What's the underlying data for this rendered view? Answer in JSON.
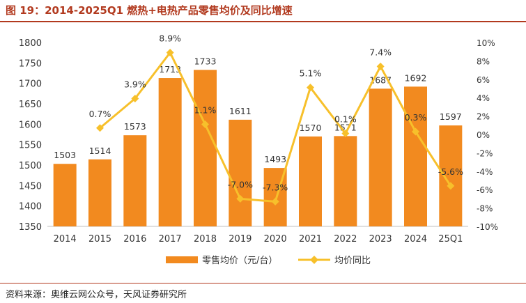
{
  "header": {
    "figure_title": "图 19：2014-2025Q1 燃热+电热产品零售均价及同比增速"
  },
  "footer": {
    "source": "资料来源：奥维云网公众号，天风证券研究所"
  },
  "colors": {
    "bar": "#f28a1f",
    "line": "#f7c02b",
    "title": "#b23a1f",
    "axis": "#333333"
  },
  "chart_data": {
    "type": "bar",
    "categories": [
      "2014",
      "2015",
      "2016",
      "2017",
      "2018",
      "2019",
      "2020",
      "2021",
      "2022",
      "2023",
      "2024",
      "25Q1"
    ],
    "series": [
      {
        "name": "零售均价（元/台）",
        "type": "bar",
        "axis": "left",
        "values": [
          1503,
          1514,
          1573,
          1713,
          1733,
          1611,
          1493,
          1570,
          1571,
          1687,
          1692,
          1597
        ],
        "labels": [
          "1503",
          "1514",
          "1573",
          "1713",
          "1733",
          "1611",
          "1493",
          "1570",
          "1571",
          "1687",
          "1692",
          "1597"
        ]
      },
      {
        "name": "均价同比",
        "type": "line",
        "axis": "right",
        "values": [
          null,
          0.7,
          3.9,
          8.9,
          1.1,
          -7.0,
          -7.3,
          5.1,
          0.1,
          7.4,
          0.3,
          -5.6
        ],
        "labels": [
          null,
          "0.7%",
          "3.9%",
          "8.9%",
          "1.1%",
          "-7.0%",
          "-7.3%",
          "5.1%",
          "0.1%",
          "7.4%",
          "0.3%",
          "-5.6%"
        ]
      }
    ],
    "y_left": {
      "lim": [
        1350,
        1800
      ],
      "ticks": [
        "1350",
        "1400",
        "1450",
        "1500",
        "1550",
        "1600",
        "1650",
        "1700",
        "1750",
        "1800"
      ]
    },
    "y_right": {
      "lim": [
        -10,
        10
      ],
      "ticks": [
        "-10%",
        "-8%",
        "-6%",
        "-4%",
        "-2%",
        "0%",
        "2%",
        "4%",
        "6%",
        "8%",
        "10%"
      ]
    },
    "grid": false,
    "legend_position": "bottom"
  }
}
